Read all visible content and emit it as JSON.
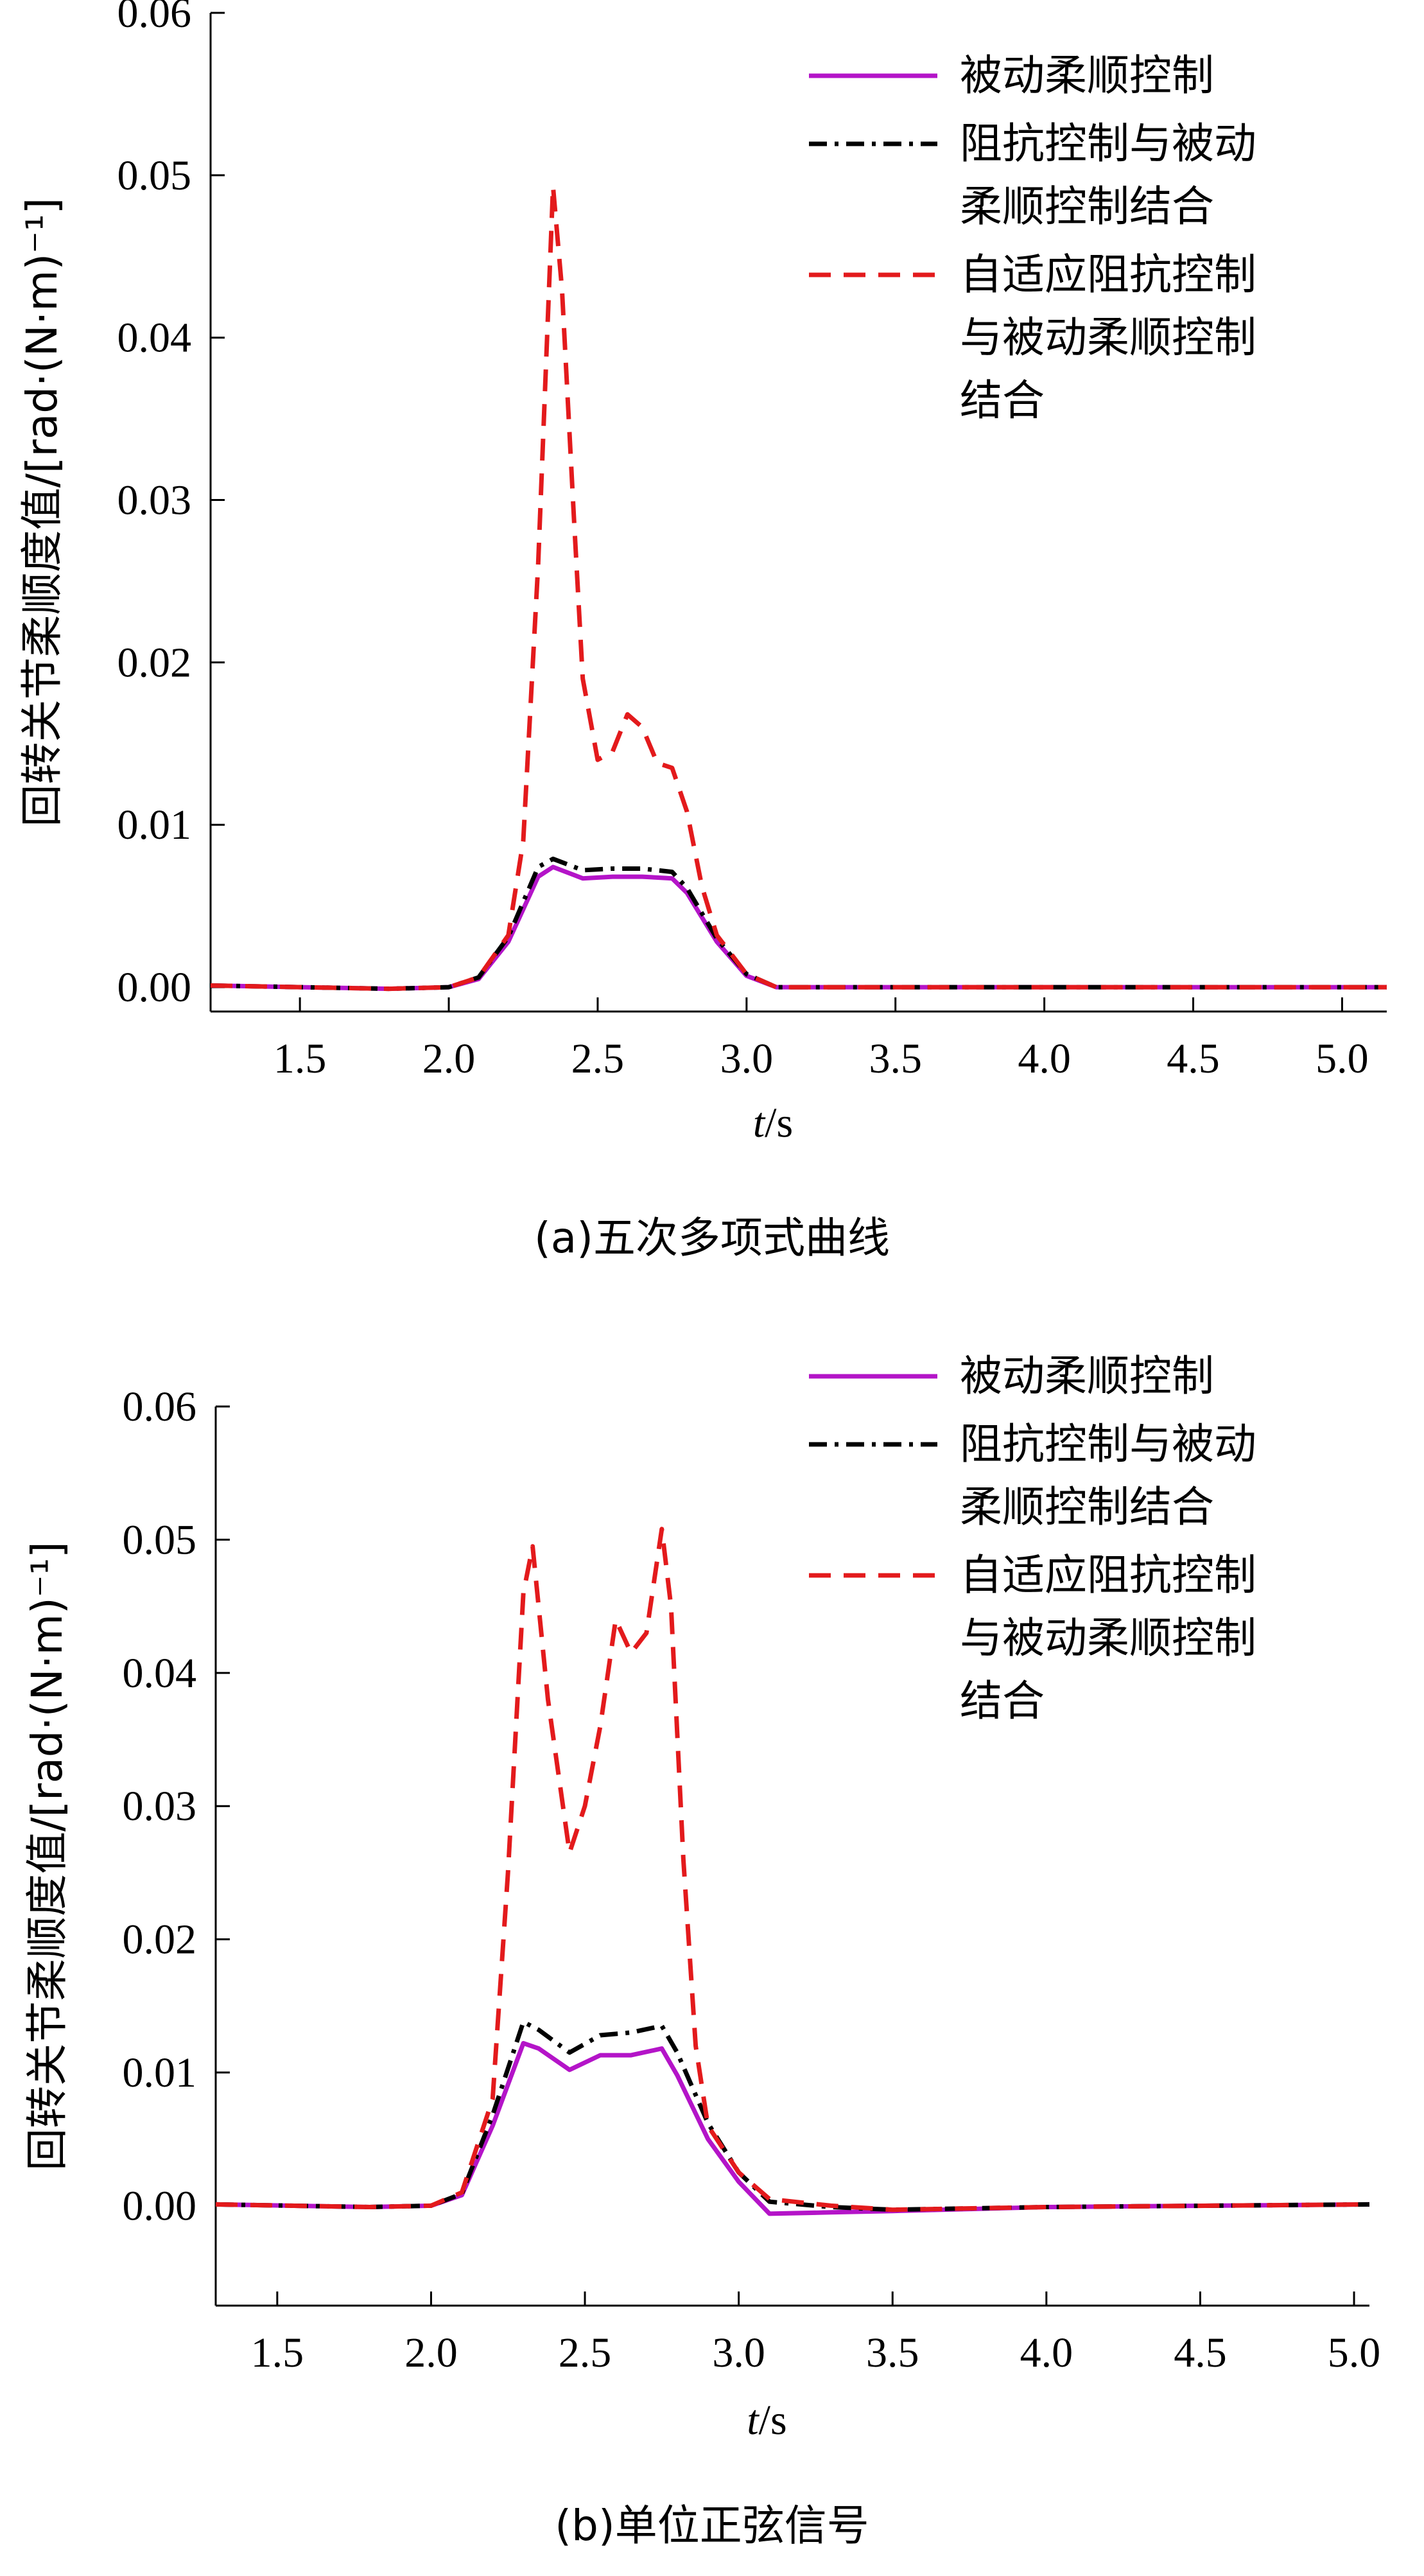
{
  "chart_data": [
    {
      "type": "line",
      "caption": "(a)五次多项式曲线",
      "ylabel": "回转关节柔顺度值/[rad·(N·m)⁻¹]",
      "xlabel": "t/s",
      "xlim": [
        1.2,
        5.15
      ],
      "ylim": [
        -0.0015,
        0.06
      ],
      "xticks": [
        "1.5",
        "2.0",
        "2.5",
        "3.0",
        "3.5",
        "4.0",
        "4.5",
        "5.0"
      ],
      "yticks": [
        "0.00",
        "0.01",
        "0.02",
        "0.03",
        "0.04",
        "0.05",
        "0.06"
      ],
      "legend_position": "top-right",
      "grid": false,
      "series": [
        {
          "name": "被动柔顺控制",
          "color": "#b414c8",
          "style": "solid",
          "x": [
            1.2,
            1.8,
            2.0,
            2.1,
            2.2,
            2.3,
            2.35,
            2.45,
            2.55,
            2.65,
            2.75,
            2.8,
            2.9,
            3.0,
            3.1,
            3.2,
            4.0,
            5.15
          ],
          "y": [
            0.0001,
            -0.0001,
            0.0,
            0.0005,
            0.0028,
            0.0068,
            0.0074,
            0.0067,
            0.0068,
            0.0068,
            0.0067,
            0.0058,
            0.0028,
            0.0007,
            0.0,
            0.0,
            0.0,
            0.0
          ]
        },
        {
          "name": "阻抗控制与被动柔顺控制结合",
          "color": "#000000",
          "style": "dashdot",
          "x": [
            1.2,
            1.8,
            2.0,
            2.1,
            2.2,
            2.3,
            2.35,
            2.45,
            2.55,
            2.65,
            2.75,
            2.8,
            2.9,
            3.0,
            3.1,
            3.2,
            4.0,
            5.15
          ],
          "y": [
            0.0001,
            -0.0001,
            0.0,
            0.0006,
            0.0031,
            0.0074,
            0.0079,
            0.0072,
            0.0073,
            0.0073,
            0.0071,
            0.0061,
            0.003,
            0.0008,
            0.0,
            0.0,
            0.0,
            0.0
          ]
        },
        {
          "name": "自适应阻抗控制与被动柔顺控制结合",
          "color": "#e31a1c",
          "style": "dashed",
          "x": [
            1.2,
            1.8,
            2.0,
            2.1,
            2.2,
            2.25,
            2.3,
            2.35,
            2.38,
            2.42,
            2.45,
            2.5,
            2.55,
            2.6,
            2.65,
            2.7,
            2.75,
            2.8,
            2.85,
            2.9,
            3.0,
            3.1,
            3.2,
            4.0,
            5.15
          ],
          "y": [
            0.0001,
            -0.0001,
            0.0,
            0.0006,
            0.0032,
            0.009,
            0.026,
            0.0493,
            0.043,
            0.029,
            0.019,
            0.014,
            0.0145,
            0.0168,
            0.016,
            0.0138,
            0.0135,
            0.0108,
            0.0062,
            0.0032,
            0.0008,
            0.0,
            0.0,
            0.0,
            0.0
          ]
        }
      ]
    },
    {
      "type": "line",
      "caption": "(b)单位正弦信号",
      "ylabel": "回转关节柔顺度值/[rad·(N·m)⁻¹]",
      "xlabel": "t/s",
      "xlim": [
        1.3,
        5.05
      ],
      "ylim": [
        -0.0075,
        0.06
      ],
      "xticks": [
        "1.5",
        "2.0",
        "2.5",
        "3.0",
        "3.5",
        "4.0",
        "4.5",
        "5.0"
      ],
      "yticks": [
        "0.00",
        "0.01",
        "0.02",
        "0.03",
        "0.04",
        "0.05",
        "0.06"
      ],
      "legend_position": "top-right",
      "grid": false,
      "series": [
        {
          "name": "被动柔顺控制",
          "color": "#b414c8",
          "style": "solid",
          "x": [
            1.3,
            1.8,
            2.0,
            2.1,
            2.2,
            2.3,
            2.35,
            2.45,
            2.55,
            2.65,
            2.75,
            2.8,
            2.9,
            3.0,
            3.1,
            3.3,
            3.5,
            4.0,
            5.05
          ],
          "y": [
            0.0001,
            -0.0001,
            0.0,
            0.0008,
            0.006,
            0.0122,
            0.0118,
            0.0102,
            0.0113,
            0.0113,
            0.0118,
            0.0098,
            0.005,
            0.0018,
            -0.0006,
            -0.0005,
            -0.0004,
            -0.0001,
            0.0001
          ]
        },
        {
          "name": "阻抗控制与被动柔顺控制结合",
          "color": "#000000",
          "style": "dashdot",
          "x": [
            1.3,
            1.8,
            2.0,
            2.1,
            2.2,
            2.3,
            2.35,
            2.45,
            2.55,
            2.65,
            2.75,
            2.8,
            2.9,
            3.0,
            3.1,
            3.3,
            3.5,
            4.0,
            5.05
          ],
          "y": [
            0.0001,
            -0.0001,
            0.0,
            0.0009,
            0.0068,
            0.0138,
            0.0132,
            0.0115,
            0.0128,
            0.013,
            0.0135,
            0.0115,
            0.0062,
            0.0025,
            0.0003,
            -0.0001,
            -0.0003,
            -0.0001,
            0.0001
          ]
        },
        {
          "name": "自适应阻抗控制与被动柔顺控制结合",
          "color": "#e31a1c",
          "style": "dashed",
          "x": [
            1.3,
            1.8,
            2.0,
            2.1,
            2.2,
            2.25,
            2.3,
            2.33,
            2.38,
            2.45,
            2.5,
            2.55,
            2.6,
            2.65,
            2.7,
            2.75,
            2.78,
            2.82,
            2.86,
            2.9,
            3.0,
            3.1,
            3.3,
            3.5,
            4.0,
            5.05
          ],
          "y": [
            0.0001,
            -0.0001,
            0.0,
            0.001,
            0.008,
            0.025,
            0.046,
            0.0495,
            0.038,
            0.0265,
            0.03,
            0.036,
            0.044,
            0.0415,
            0.043,
            0.0508,
            0.045,
            0.026,
            0.012,
            0.006,
            0.0025,
            0.0005,
            0.0,
            -0.0003,
            -0.0001,
            0.0001
          ]
        }
      ]
    }
  ]
}
